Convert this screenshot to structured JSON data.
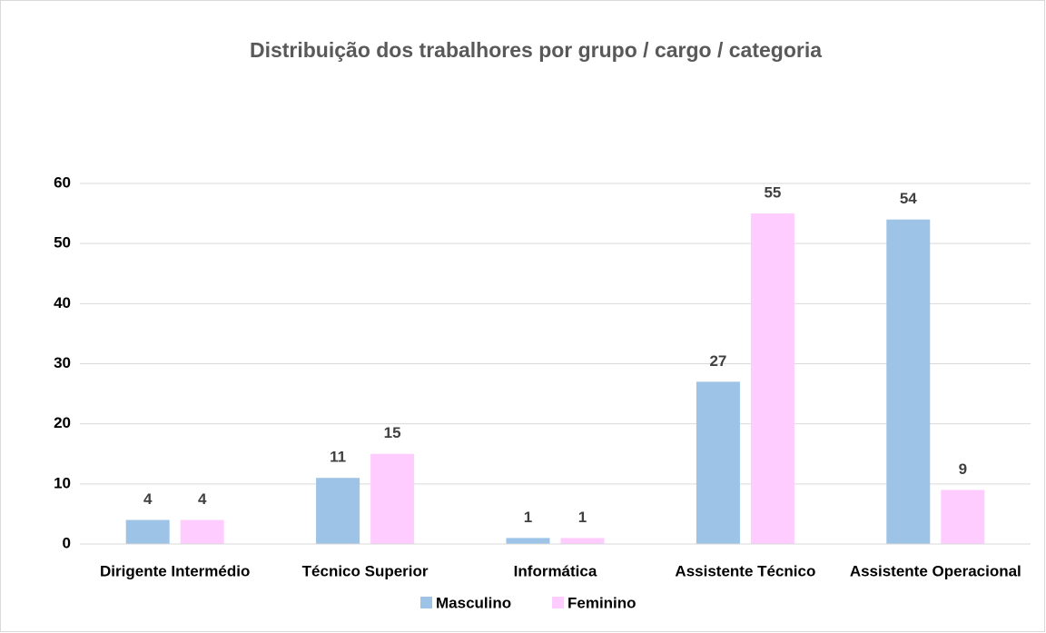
{
  "chart_data": {
    "type": "bar",
    "title": "Distribuição dos trabalhores por grupo / cargo / categoria",
    "categories": [
      "Dirigente Intermédio",
      "Técnico Superior",
      "Informática",
      "Assistente Técnico",
      "Assistente Operacional"
    ],
    "series": [
      {
        "name": "Masculino",
        "color": "#9dc3e6",
        "values": [
          4,
          11,
          1,
          27,
          54
        ]
      },
      {
        "name": "Feminino",
        "color": "#ffccff",
        "values": [
          4,
          15,
          1,
          55,
          9
        ]
      }
    ],
    "ylim": [
      0,
      60
    ],
    "yticks": [
      0,
      10,
      20,
      30,
      40,
      50,
      60
    ],
    "grid": true,
    "legend": "bottom"
  }
}
